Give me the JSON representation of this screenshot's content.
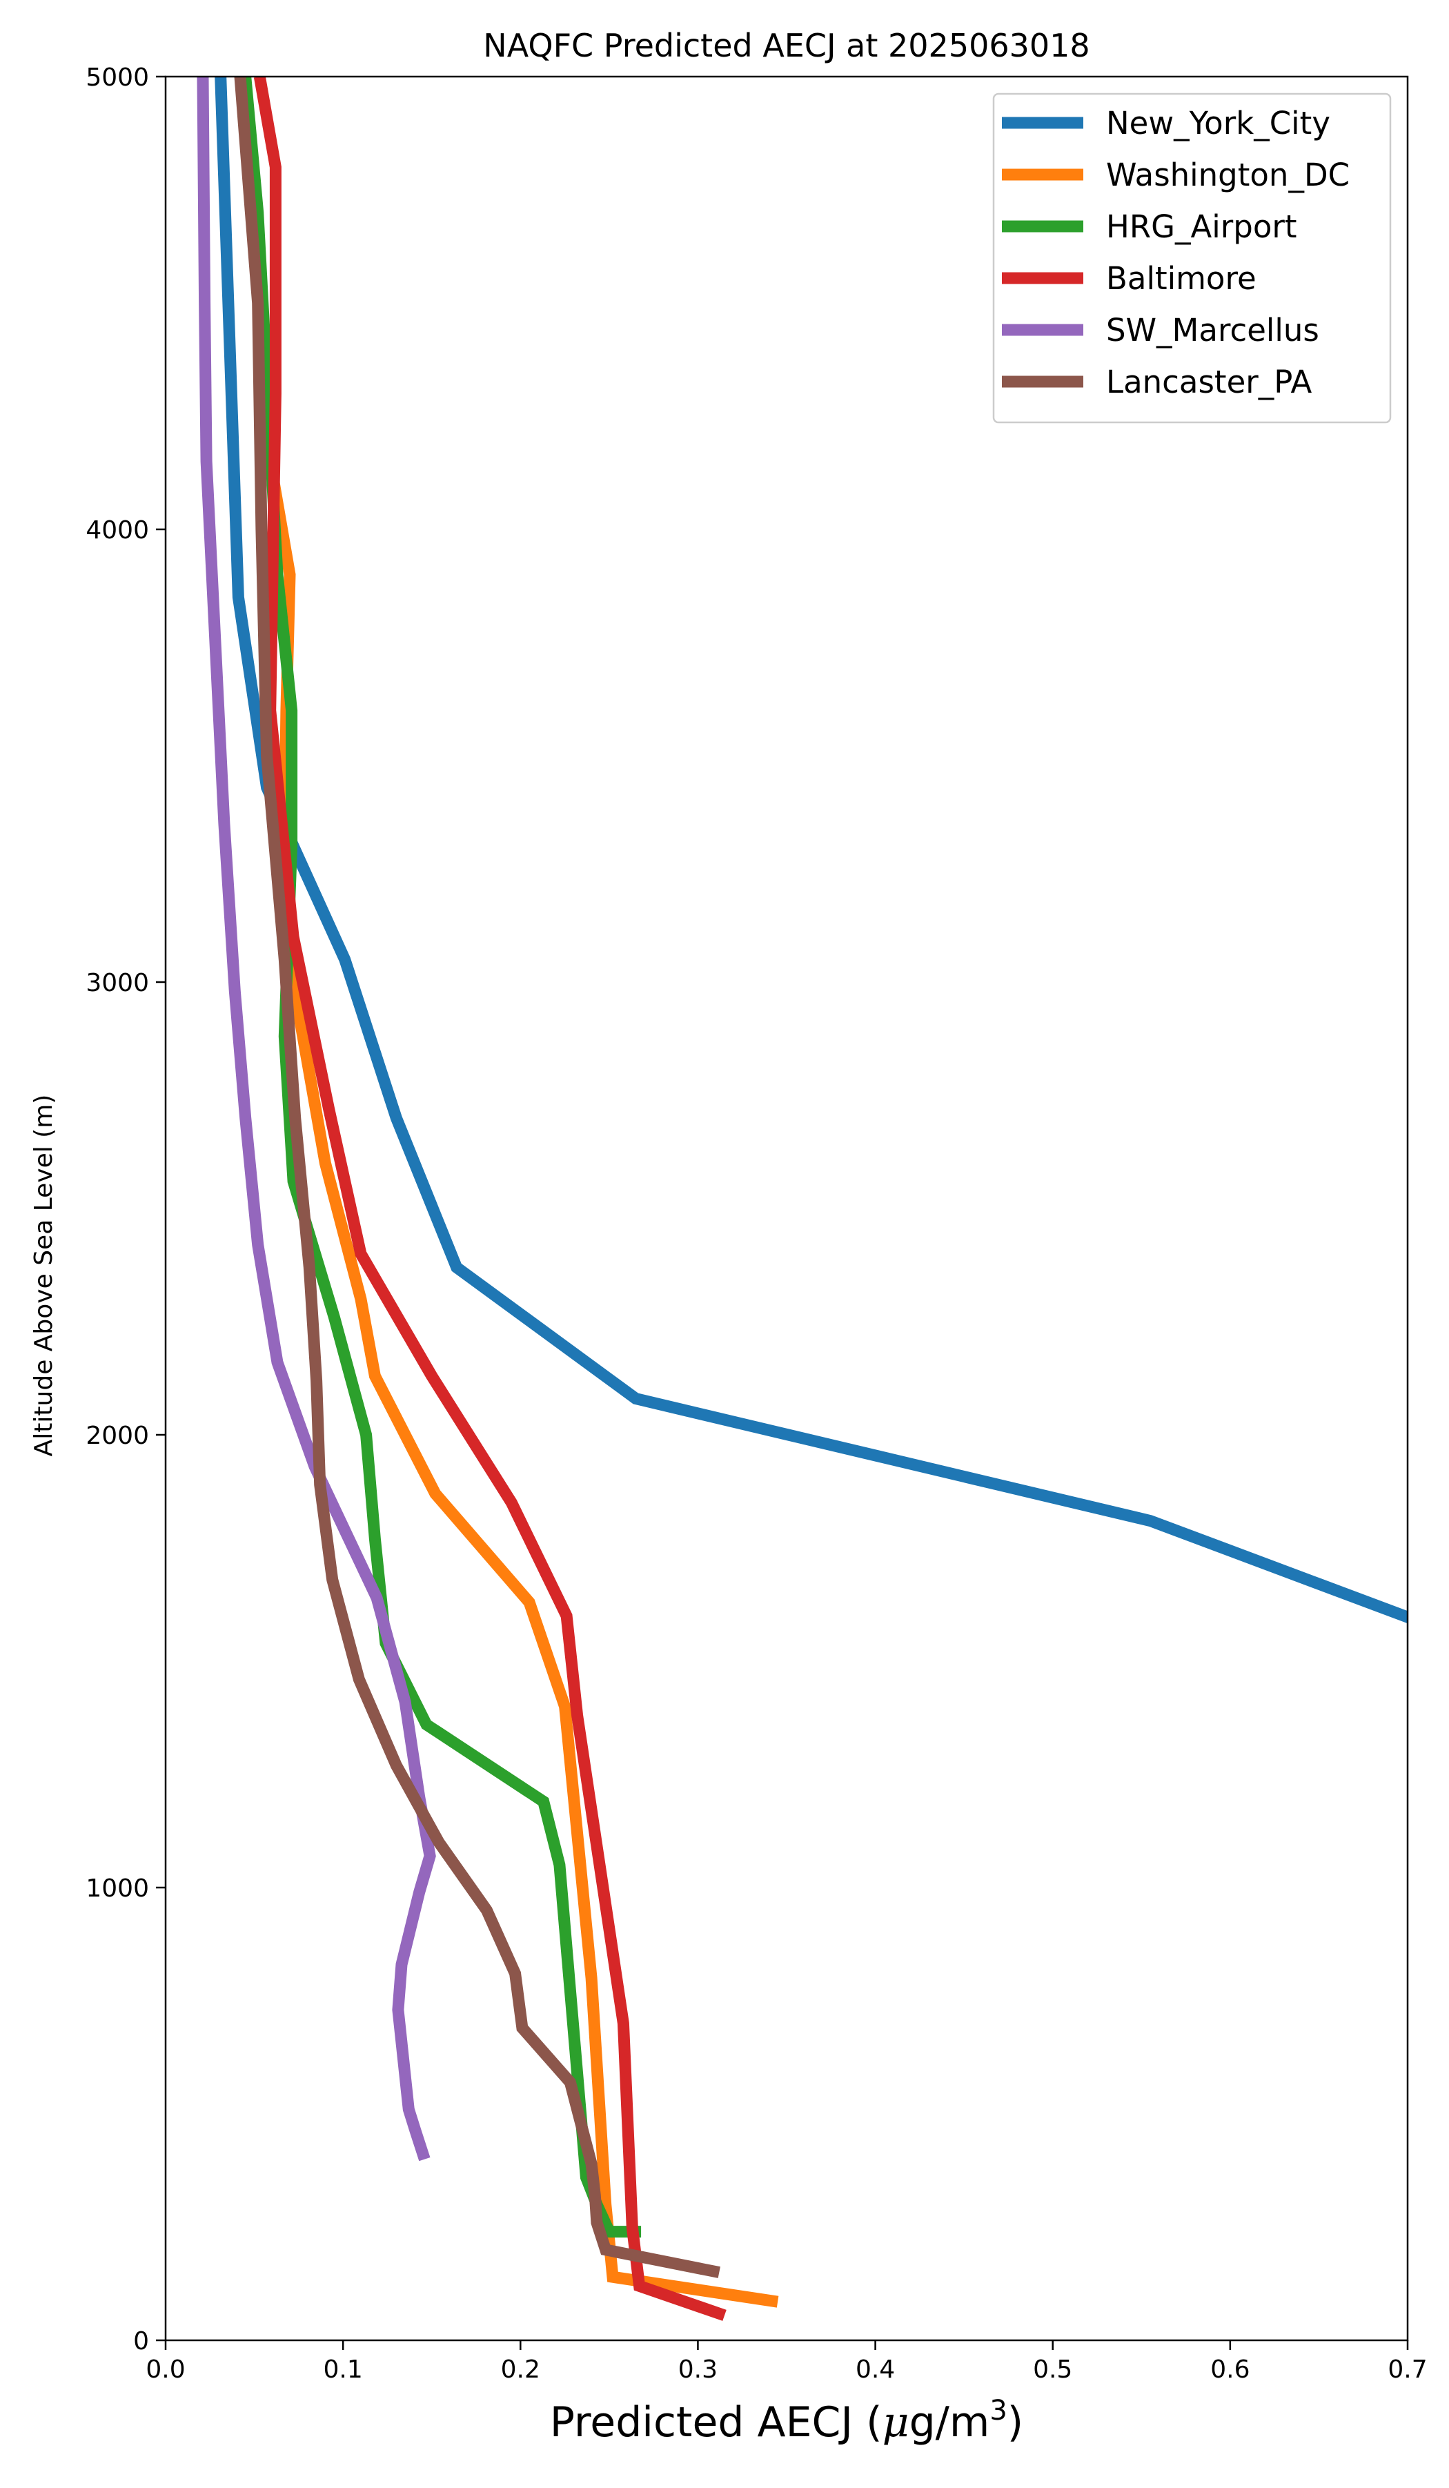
{
  "chart_data": {
    "type": "line",
    "title": "NAQFC Predicted AECJ at 2025063018",
    "xlabel_main": "Predicted AECJ (",
    "xlabel_mu": "μ",
    "xlabel_unit": "g/m",
    "xlabel_sup": "3",
    "xlabel_close": ")",
    "ylabel": "Altitude Above Sea Level (m)",
    "xlim": [
      0.0,
      0.7
    ],
    "ylim": [
      0,
      5000
    ],
    "xticks": [
      "0.0",
      "0.1",
      "0.2",
      "0.3",
      "0.4",
      "0.5",
      "0.6",
      "0.7"
    ],
    "yticks": [
      "0",
      "1000",
      "2000",
      "3000",
      "4000",
      "5000"
    ],
    "grid": false,
    "legend_position": "top-right",
    "series": [
      {
        "name": "New_York_City",
        "color": "#1f77b4",
        "points": [
          [
            0.031,
            5000
          ],
          [
            0.041,
            3850
          ],
          [
            0.057,
            3430
          ],
          [
            0.101,
            3050
          ],
          [
            0.13,
            2700
          ],
          [
            0.164,
            2370
          ],
          [
            0.265,
            2080
          ],
          [
            0.555,
            1810
          ],
          [
            0.705,
            1590
          ]
        ]
      },
      {
        "name": "Washington_DC",
        "color": "#ff7f0e",
        "points": [
          [
            0.059,
            4150
          ],
          [
            0.07,
            3900
          ],
          [
            0.068,
            3600
          ],
          [
            0.067,
            3300
          ],
          [
            0.072,
            3000
          ],
          [
            0.09,
            2600
          ],
          [
            0.11,
            2300
          ],
          [
            0.118,
            2130
          ],
          [
            0.152,
            1870
          ],
          [
            0.205,
            1630
          ],
          [
            0.225,
            1400
          ],
          [
            0.24,
            800
          ],
          [
            0.248,
            300
          ],
          [
            0.252,
            140
          ],
          [
            0.345,
            85
          ]
        ]
      },
      {
        "name": "HRG_Airport",
        "color": "#2ca02c",
        "points": [
          [
            0.045,
            5000
          ],
          [
            0.052,
            4700
          ],
          [
            0.063,
            3900
          ],
          [
            0.071,
            3600
          ],
          [
            0.071,
            3300
          ],
          [
            0.067,
            2880
          ],
          [
            0.072,
            2560
          ],
          [
            0.095,
            2260
          ],
          [
            0.113,
            2000
          ],
          [
            0.118,
            1770
          ],
          [
            0.124,
            1540
          ],
          [
            0.147,
            1360
          ],
          [
            0.213,
            1190
          ],
          [
            0.222,
            1050
          ],
          [
            0.237,
            360
          ],
          [
            0.243,
            300
          ],
          [
            0.25,
            240
          ],
          [
            0.268,
            240
          ]
        ]
      },
      {
        "name": "Baltimore",
        "color": "#d62728",
        "points": [
          [
            0.053,
            5000
          ],
          [
            0.062,
            4800
          ],
          [
            0.062,
            4300
          ],
          [
            0.059,
            3600
          ],
          [
            0.072,
            3100
          ],
          [
            0.092,
            2720
          ],
          [
            0.11,
            2400
          ],
          [
            0.15,
            2130
          ],
          [
            0.195,
            1850
          ],
          [
            0.226,
            1600
          ],
          [
            0.232,
            1380
          ],
          [
            0.258,
            700
          ],
          [
            0.263,
            250
          ],
          [
            0.267,
            120
          ],
          [
            0.315,
            55
          ]
        ]
      },
      {
        "name": "SW_Marcellus",
        "color": "#9467bd",
        "points": [
          [
            0.021,
            5000
          ],
          [
            0.022,
            4500
          ],
          [
            0.023,
            4150
          ],
          [
            0.028,
            3750
          ],
          [
            0.033,
            3350
          ],
          [
            0.039,
            2980
          ],
          [
            0.045,
            2700
          ],
          [
            0.052,
            2420
          ],
          [
            0.063,
            2160
          ],
          [
            0.084,
            1930
          ],
          [
            0.119,
            1640
          ],
          [
            0.135,
            1410
          ],
          [
            0.143,
            1200
          ],
          [
            0.149,
            1070
          ],
          [
            0.143,
            990
          ],
          [
            0.133,
            830
          ],
          [
            0.131,
            730
          ],
          [
            0.137,
            510
          ],
          [
            0.141,
            460
          ],
          [
            0.146,
            400
          ]
        ]
      },
      {
        "name": "Lancaster_PA",
        "color": "#8c564b",
        "points": [
          [
            0.042,
            5000
          ],
          [
            0.052,
            4500
          ],
          [
            0.054,
            4000
          ],
          [
            0.057,
            3500
          ],
          [
            0.067,
            3050
          ],
          [
            0.073,
            2700
          ],
          [
            0.081,
            2370
          ],
          [
            0.085,
            2120
          ],
          [
            0.087,
            1890
          ],
          [
            0.094,
            1680
          ],
          [
            0.109,
            1460
          ],
          [
            0.13,
            1270
          ],
          [
            0.154,
            1100
          ],
          [
            0.181,
            950
          ],
          [
            0.197,
            810
          ],
          [
            0.201,
            690
          ],
          [
            0.228,
            570
          ],
          [
            0.24,
            390
          ],
          [
            0.242,
            320
          ],
          [
            0.243,
            260
          ],
          [
            0.248,
            200
          ],
          [
            0.312,
            150
          ]
        ]
      }
    ]
  }
}
